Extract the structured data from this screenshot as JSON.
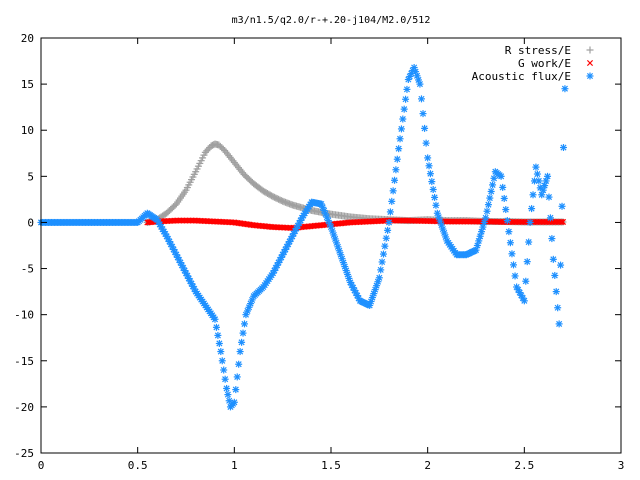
{
  "chart_data": {
    "type": "scatter",
    "title": "m3/n1.5/q2.0/r-+.20-j104/M2.0/512",
    "xlabel": "",
    "ylabel": "",
    "xlim": [
      0,
      3
    ],
    "ylim": [
      -25,
      20
    ],
    "x_ticks": [
      {
        "value": 0,
        "label": "0"
      },
      {
        "value": 0.5,
        "label": "0.5"
      },
      {
        "value": 1,
        "label": "1"
      },
      {
        "value": 1.5,
        "label": "1.5"
      },
      {
        "value": 2,
        "label": "2"
      },
      {
        "value": 2.5,
        "label": "2.5"
      },
      {
        "value": 3,
        "label": "3"
      }
    ],
    "y_ticks": [
      {
        "value": -25,
        "label": "-25"
      },
      {
        "value": -20,
        "label": "-20"
      },
      {
        "value": -15,
        "label": "-15"
      },
      {
        "value": -10,
        "label": "-10"
      },
      {
        "value": -5,
        "label": "-5"
      },
      {
        "value": 0,
        "label": "0"
      },
      {
        "value": 5,
        "label": "5"
      },
      {
        "value": 10,
        "label": "10"
      },
      {
        "value": 15,
        "label": "15"
      },
      {
        "value": 20,
        "label": "20"
      }
    ],
    "grid": false,
    "legend_position": "top-right",
    "series": [
      {
        "name": "R stress/E",
        "marker": "plus",
        "color": "#a0a0a0",
        "x": [
          0.55,
          0.6,
          0.65,
          0.7,
          0.75,
          0.8,
          0.85,
          0.88,
          0.9,
          0.92,
          0.95,
          1.0,
          1.05,
          1.1,
          1.15,
          1.2,
          1.25,
          1.3,
          1.35,
          1.4,
          1.45,
          1.5,
          1.6,
          1.7,
          1.8,
          1.9,
          2.0,
          2.1,
          2.2,
          2.3,
          2.4,
          2.5,
          2.6,
          2.7
        ],
        "y": [
          0.0,
          0.3,
          1.0,
          2.0,
          3.5,
          5.5,
          7.6,
          8.3,
          8.5,
          8.4,
          7.8,
          6.5,
          5.2,
          4.2,
          3.4,
          2.8,
          2.3,
          1.9,
          1.6,
          1.3,
          1.1,
          0.9,
          0.6,
          0.4,
          0.3,
          0.2,
          0.3,
          0.2,
          0.2,
          0.1,
          0.1,
          0.05,
          0.05,
          0.05
        ]
      },
      {
        "name": "G work/E",
        "marker": "cross",
        "color": "#ff0000",
        "x": [
          0.55,
          0.6,
          0.7,
          0.8,
          0.9,
          1.0,
          1.1,
          1.2,
          1.3,
          1.4,
          1.5,
          1.6,
          1.7,
          1.8,
          1.9,
          2.0,
          2.1,
          2.2,
          2.3,
          2.4,
          2.5,
          2.6,
          2.7
        ],
        "y": [
          0.0,
          0.1,
          0.2,
          0.2,
          0.1,
          0.0,
          -0.3,
          -0.5,
          -0.6,
          -0.4,
          -0.2,
          0.0,
          0.1,
          0.2,
          0.2,
          0.15,
          0.1,
          0.1,
          0.1,
          0.05,
          0.05,
          0.05,
          0.05
        ]
      },
      {
        "name": "Acoustic flux/E",
        "marker": "star",
        "color": "#1e90ff",
        "x": [
          0.0,
          0.1,
          0.2,
          0.3,
          0.4,
          0.5,
          0.55,
          0.6,
          0.65,
          0.7,
          0.75,
          0.8,
          0.85,
          0.9,
          0.93,
          0.96,
          0.98,
          1.0,
          1.03,
          1.06,
          1.1,
          1.15,
          1.2,
          1.25,
          1.3,
          1.35,
          1.4,
          1.45,
          1.5,
          1.55,
          1.6,
          1.65,
          1.7,
          1.75,
          1.8,
          1.85,
          1.9,
          1.93,
          1.96,
          2.0,
          2.05,
          2.1,
          2.15,
          2.2,
          2.25,
          2.3,
          2.35,
          2.38,
          2.42,
          2.46,
          2.5,
          2.53,
          2.56,
          2.59,
          2.62,
          2.65,
          2.68,
          2.71
        ],
        "y": [
          0.0,
          0.0,
          0.0,
          0.0,
          0.0,
          0.0,
          1.0,
          0.3,
          -1.5,
          -3.5,
          -5.5,
          -7.5,
          -9.0,
          -10.5,
          -14.0,
          -18.0,
          -20.0,
          -19.5,
          -14.0,
          -10.0,
          -8.0,
          -7.0,
          -5.5,
          -3.5,
          -1.5,
          0.5,
          2.2,
          2.0,
          -0.5,
          -3.5,
          -6.5,
          -8.5,
          -9.0,
          -6.0,
          0.0,
          8.0,
          15.5,
          16.8,
          15.0,
          7.0,
          1.0,
          -2.0,
          -3.5,
          -3.5,
          -3.0,
          0.5,
          5.5,
          5.0,
          -1.0,
          -7.0,
          -8.5,
          0.0,
          6.0,
          3.0,
          5.0,
          -4.0,
          -11.0,
          14.5
        ]
      }
    ]
  }
}
